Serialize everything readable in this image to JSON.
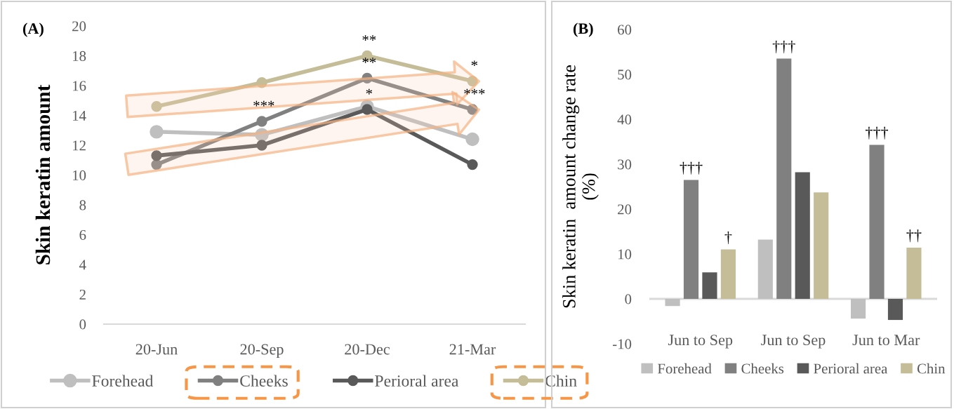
{
  "chart_data": [
    {
      "type": "line",
      "title": "(A)",
      "ylabel": "Skin keratin amount",
      "categories": [
        "20-Jun",
        "20-Sep",
        "20-Dec",
        "21-Mar"
      ],
      "series": [
        {
          "name": "Forehead",
          "color": "#bfbfbf",
          "values": [
            12.9,
            12.7,
            14.6,
            12.4
          ]
        },
        {
          "name": "Cheeks",
          "color": "#808080",
          "values": [
            10.7,
            13.6,
            16.5,
            14.4
          ],
          "value_labels": [
            null,
            "***",
            "**",
            "***"
          ]
        },
        {
          "name": "Perioral area",
          "color": "#595959",
          "values": [
            11.3,
            12.0,
            14.4,
            10.7
          ],
          "value_labels": [
            null,
            null,
            "*",
            null
          ]
        },
        {
          "name": "Chin",
          "color": "#c4bd97",
          "values": [
            14.6,
            16.2,
            18.0,
            16.3
          ],
          "value_labels": [
            null,
            null,
            "**",
            "*"
          ]
        }
      ],
      "ylim": [
        0,
        20
      ],
      "yticks": [
        0,
        2,
        4,
        6,
        8,
        10,
        12,
        14,
        16,
        18,
        20
      ],
      "grid": false,
      "legend": "bottom",
      "marker": "circle",
      "line_style": "solid"
    },
    {
      "type": "bar",
      "title": "(B)",
      "ylabel": "Skin keratin  amount change rate\n(%)",
      "categories": [
        "Jun to Sep",
        "Jun to Sep",
        "Jun to Mar"
      ],
      "series": [
        {
          "name": "Forehead",
          "color": "#bfbfbf",
          "values": [
            -1.6,
            13.2,
            -4.4
          ]
        },
        {
          "name": "Cheeks",
          "color": "#808080",
          "values": [
            26.5,
            53.5,
            34.3
          ],
          "value_labels": [
            "†††",
            "†††",
            "†††"
          ]
        },
        {
          "name": "Perioral area",
          "color": "#595959",
          "values": [
            5.9,
            28.2,
            -4.7
          ]
        },
        {
          "name": "Chin",
          "color": "#c4bd97",
          "values": [
            11.0,
            23.7,
            11.4
          ],
          "value_labels": [
            "†",
            null,
            "††"
          ]
        }
      ],
      "ylim": [
        -10,
        60
      ],
      "yticks": [
        -10,
        0,
        10,
        20,
        30,
        40,
        50,
        60
      ],
      "grid": false,
      "legend": "bottom"
    }
  ]
}
